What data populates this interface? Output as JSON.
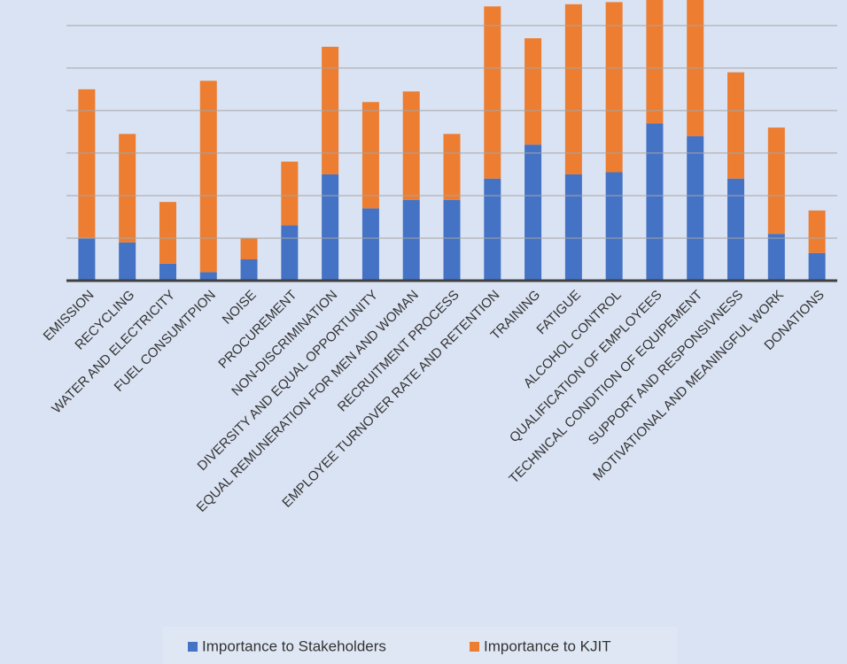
{
  "chart_data": {
    "type": "bar",
    "stacked": true,
    "categories": [
      "EMISSION",
      "RECYCLING",
      "WATER AND ELECTRICITY",
      "FUEL CONSUMTPION",
      "NOISE",
      "PROCUREMENT",
      "NON-DISCRIMINATION",
      "DIVERSITY AND EQUAL OPPORTUNITY",
      "EQUAL REMUNERATION FOR MEN AND WOMAN",
      "RECRUITMENT PROCESS",
      "EMPLOYEE TURNOVER RATE AND RETENTION",
      "TRAINING",
      "FATIGUE",
      "ALCOHOL CONTROL",
      "QUALIFICATION OF EMPLOYEES",
      "TECHNICAL CONDITION OF EQUIPEMENT",
      "SUPPORT AND RESPONSIVNESS",
      "MOTIVATIONAL AND MEANINGFUL WORK",
      "DONATIONS"
    ],
    "series": [
      {
        "name": "Importance to Stakeholders",
        "color": "#4472c4",
        "values": [
          1.0,
          0.9,
          0.4,
          0.2,
          0.5,
          1.3,
          2.5,
          1.7,
          1.9,
          1.9,
          2.4,
          3.2,
          2.5,
          2.55,
          3.7,
          3.4,
          2.4,
          1.1,
          0.65
        ]
      },
      {
        "name": "Importance to KJIT",
        "color": "#ed7d31",
        "values": [
          3.5,
          2.55,
          1.45,
          4.5,
          0.5,
          1.5,
          3.0,
          2.5,
          2.55,
          1.55,
          4.05,
          2.5,
          4.0,
          4.0,
          3.3,
          3.6,
          2.5,
          2.5,
          1.0
        ]
      }
    ],
    "ylim": [
      0,
      6.6
    ],
    "yticks": [
      0,
      1,
      2,
      3,
      4,
      5,
      6
    ],
    "grid": true,
    "legend": "bottom"
  }
}
